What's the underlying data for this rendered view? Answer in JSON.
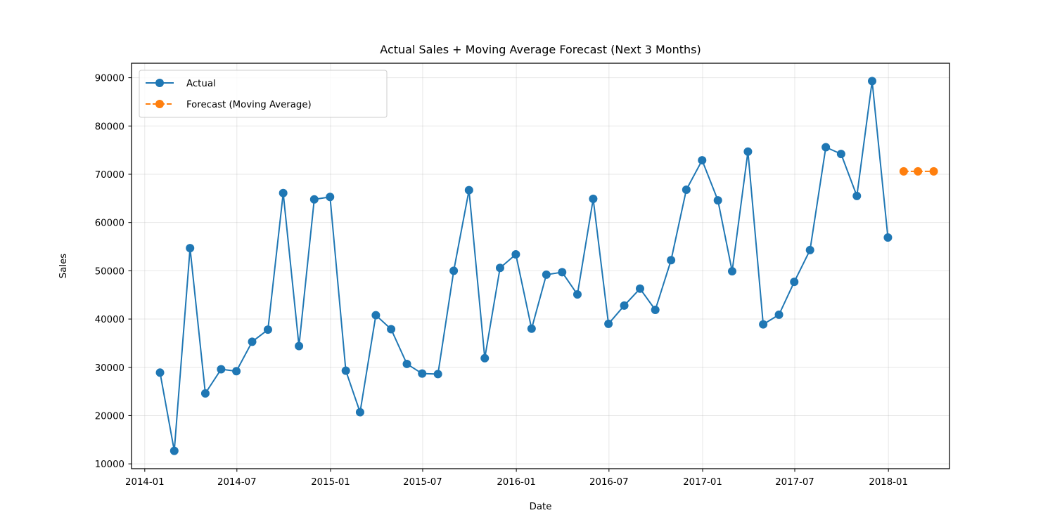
{
  "chart_data": {
    "type": "line",
    "title": "Actual Sales + Moving Average Forecast (Next 3 Months)",
    "xlabel": "Date",
    "ylabel": "Sales",
    "x_ticks": [
      "2014-01",
      "2014-07",
      "2015-01",
      "2015-07",
      "2016-01",
      "2016-07",
      "2017-01",
      "2017-07",
      "2018-01"
    ],
    "y_ticks": [
      10000,
      20000,
      30000,
      40000,
      50000,
      60000,
      70000,
      80000,
      90000
    ],
    "xlim": [
      "2013-12-06",
      "2018-05-01"
    ],
    "ylim": [
      9000,
      93000
    ],
    "grid": true,
    "legend_position": "top-left",
    "series": [
      {
        "name": "Actual",
        "color": "#1f77b4",
        "linestyle": "solid",
        "marker": "circle",
        "x": [
          "2014-01-31",
          "2014-02-28",
          "2014-03-31",
          "2014-04-30",
          "2014-05-31",
          "2014-06-30",
          "2014-07-31",
          "2014-08-31",
          "2014-09-30",
          "2014-10-31",
          "2014-11-30",
          "2014-12-31",
          "2015-01-31",
          "2015-02-28",
          "2015-03-31",
          "2015-04-30",
          "2015-05-31",
          "2015-06-30",
          "2015-07-31",
          "2015-08-31",
          "2015-09-30",
          "2015-10-31",
          "2015-11-30",
          "2015-12-31",
          "2016-01-31",
          "2016-02-29",
          "2016-03-31",
          "2016-04-30",
          "2016-05-31",
          "2016-06-30",
          "2016-07-31",
          "2016-08-31",
          "2016-09-30",
          "2016-10-31",
          "2016-11-30",
          "2016-12-31",
          "2017-01-31",
          "2017-02-28",
          "2017-03-31",
          "2017-04-30",
          "2017-05-31",
          "2017-06-30",
          "2017-07-31",
          "2017-08-31",
          "2017-09-30",
          "2017-10-31",
          "2017-11-30",
          "2017-12-31"
        ],
        "y": [
          28900,
          12700,
          54700,
          24600,
          29600,
          29200,
          35300,
          37800,
          66100,
          34400,
          64800,
          65300,
          29300,
          20700,
          40800,
          37900,
          30700,
          28700,
          28600,
          50000,
          66700,
          31900,
          50600,
          53400,
          38000,
          49200,
          49700,
          45100,
          64900,
          39000,
          42800,
          46300,
          41900,
          52200,
          66800,
          72900,
          64600,
          49900,
          74700,
          38900,
          40900,
          47700,
          54300,
          75600,
          74200,
          65500,
          89300,
          56900
        ]
      },
      {
        "name": "Forecast (Moving Average)",
        "color": "#ff7f0e",
        "linestyle": "dashed",
        "marker": "circle",
        "x": [
          "2018-01-31",
          "2018-02-28",
          "2018-03-31"
        ],
        "y": [
          70600,
          70600,
          70600
        ]
      }
    ]
  }
}
